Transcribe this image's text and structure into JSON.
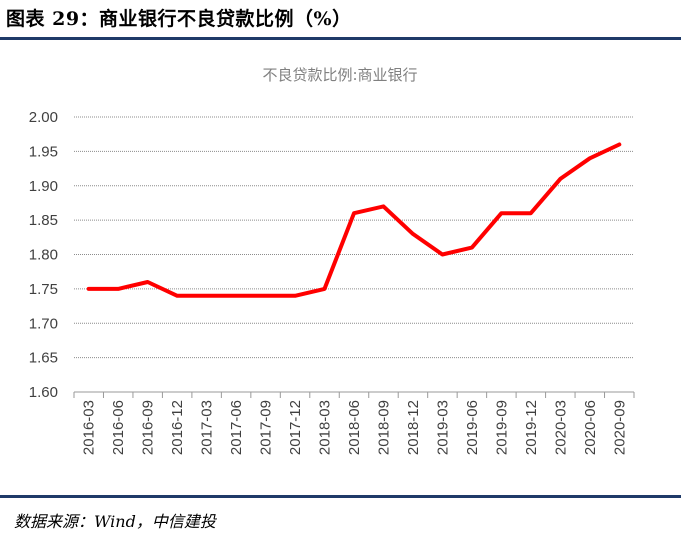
{
  "header": {
    "figure_title": "图表 29：商业银行不良贷款比例（%）"
  },
  "footer": {
    "source": "数据来源：Wind，中信建投"
  },
  "chart_data": {
    "type": "line",
    "title": "不良贷款比例:商业银行",
    "xlabel": "",
    "ylabel": "",
    "ylim": [
      1.6,
      2.0
    ],
    "yticks": [
      "1.60",
      "1.65",
      "1.70",
      "1.75",
      "1.80",
      "1.85",
      "1.90",
      "1.95",
      "2.00"
    ],
    "grid": true,
    "legend": "none",
    "categories": [
      "2016-03",
      "2016-06",
      "2016-09",
      "2016-12",
      "2017-03",
      "2017-06",
      "2017-09",
      "2017-12",
      "2018-03",
      "2018-06",
      "2018-09",
      "2018-12",
      "2019-03",
      "2019-06",
      "2019-09",
      "2019-12",
      "2020-03",
      "2020-06",
      "2020-09"
    ],
    "series": [
      {
        "values": [
          1.75,
          1.75,
          1.76,
          1.74,
          1.74,
          1.74,
          1.74,
          1.74,
          1.75,
          1.86,
          1.87,
          1.83,
          1.8,
          1.81,
          1.86,
          1.86,
          1.91,
          1.94,
          1.96
        ],
        "color": "#ff0000"
      }
    ]
  }
}
